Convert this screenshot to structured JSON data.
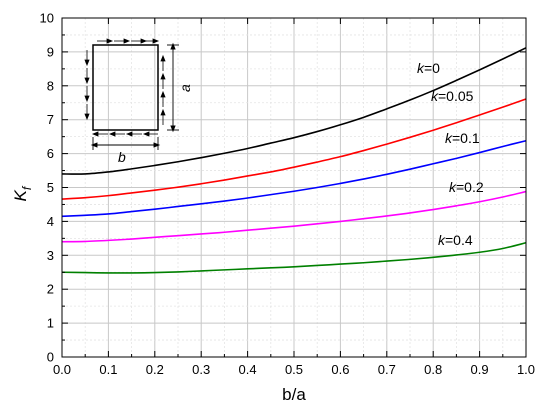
{
  "chart_data": {
    "type": "line",
    "xlabel": "b/a",
    "ylabel_main": "K",
    "ylabel_sub": "f",
    "xlim": [
      0.0,
      1.0
    ],
    "ylim": [
      0,
      10
    ],
    "x_ticks": [
      "0.0",
      "0.1",
      "0.2",
      "0.3",
      "0.4",
      "0.5",
      "0.6",
      "0.7",
      "0.8",
      "0.9",
      "1.0"
    ],
    "y_ticks": [
      "0",
      "1",
      "2",
      "3",
      "4",
      "5",
      "6",
      "7",
      "8",
      "9",
      "10"
    ],
    "grid": true,
    "minor_grid": true,
    "x": [
      0.0,
      0.05,
      0.1,
      0.15,
      0.2,
      0.25,
      0.3,
      0.35,
      0.4,
      0.45,
      0.5,
      0.55,
      0.6,
      0.65,
      0.7,
      0.75,
      0.8,
      0.85,
      0.9,
      0.95,
      1.0
    ],
    "series": [
      {
        "label_italic": "k",
        "label_rest": "=0",
        "color": "#000000",
        "values": [
          5.4,
          5.4,
          5.46,
          5.55,
          5.65,
          5.76,
          5.88,
          6.01,
          6.15,
          6.31,
          6.47,
          6.65,
          6.85,
          7.07,
          7.32,
          7.58,
          7.86,
          8.16,
          8.47,
          8.79,
          9.12
        ]
      },
      {
        "label_italic": "k",
        "label_rest": "=0.05",
        "color": "#ff0000",
        "values": [
          4.66,
          4.7,
          4.76,
          4.84,
          4.92,
          5.01,
          5.11,
          5.22,
          5.34,
          5.46,
          5.6,
          5.75,
          5.91,
          6.09,
          6.28,
          6.48,
          6.69,
          6.91,
          7.14,
          7.37,
          7.61
        ]
      },
      {
        "label_italic": "k",
        "label_rest": "=0.1",
        "color": "#0000ff",
        "values": [
          4.15,
          4.18,
          4.22,
          4.29,
          4.36,
          4.44,
          4.52,
          4.6,
          4.69,
          4.79,
          4.89,
          5.0,
          5.12,
          5.25,
          5.39,
          5.54,
          5.7,
          5.86,
          6.03,
          6.21,
          6.38
        ]
      },
      {
        "label_italic": "k",
        "label_rest": "=0.2",
        "color": "#ff00ff",
        "values": [
          3.4,
          3.41,
          3.44,
          3.48,
          3.53,
          3.58,
          3.63,
          3.68,
          3.74,
          3.8,
          3.86,
          3.93,
          4.0,
          4.08,
          4.16,
          4.25,
          4.35,
          4.46,
          4.58,
          4.72,
          4.88
        ]
      },
      {
        "label_italic": "k",
        "label_rest": "=0.4",
        "color": "#008000",
        "values": [
          2.5,
          2.49,
          2.48,
          2.48,
          2.49,
          2.51,
          2.54,
          2.57,
          2.6,
          2.63,
          2.66,
          2.7,
          2.74,
          2.78,
          2.83,
          2.88,
          2.94,
          3.01,
          3.09,
          3.2,
          3.37
        ]
      }
    ],
    "inset": {
      "label_b": "b",
      "label_a": "a"
    }
  }
}
